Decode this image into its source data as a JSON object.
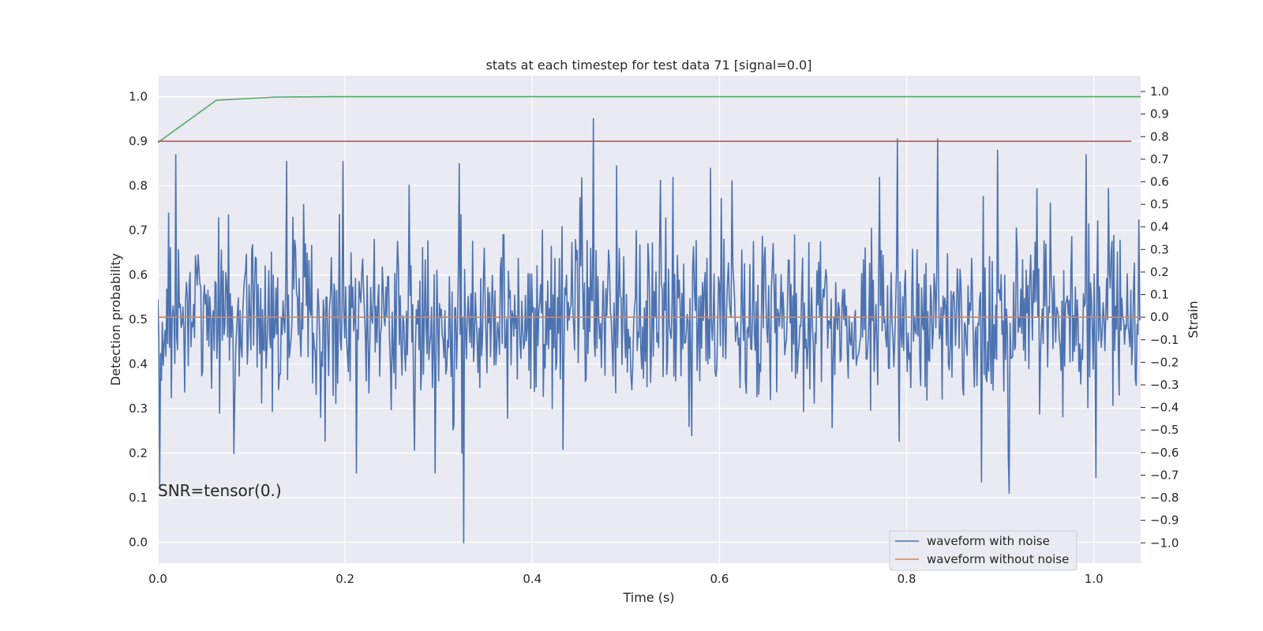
{
  "chart_data": {
    "type": "line",
    "title": "stats at each timestep for test data 71 [signal=0.0]",
    "xlabel": "Time (s)",
    "ylabel_left": "Detection probability",
    "ylabel_right": "Strain",
    "annotation": "SNR=tensor(0.)",
    "xlim": [
      0.0,
      1.05
    ],
    "ylim_left": [
      -0.047,
      1.047
    ],
    "ylim_right": [
      -1.09,
      1.07
    ],
    "x_ticks": [
      "0.0",
      "0.2",
      "0.4",
      "0.6",
      "0.8",
      "1.0"
    ],
    "x_tick_values": [
      0.0,
      0.2,
      0.4,
      0.6,
      0.8,
      1.0
    ],
    "y_left_ticks": [
      "0.0",
      "0.1",
      "0.2",
      "0.3",
      "0.4",
      "0.5",
      "0.6",
      "0.7",
      "0.8",
      "0.9",
      "1.0"
    ],
    "y_left_tick_values": [
      0.0,
      0.1,
      0.2,
      0.3,
      0.4,
      0.5,
      0.6,
      0.7,
      0.8,
      0.9,
      1.0
    ],
    "y_right_ticks": [
      "1.0",
      "0.9",
      "0.8",
      "0.7",
      "0.6",
      "0.5",
      "0.4",
      "0.3",
      "0.2",
      "0.1",
      "0.0",
      "−0.1",
      "−0.2",
      "−0.3",
      "−0.4",
      "−0.5",
      "−0.6",
      "−0.7",
      "−0.8",
      "−0.9",
      "−1.0"
    ],
    "y_right_tick_values": [
      1.0,
      0.9,
      0.8,
      0.7,
      0.6,
      0.5,
      0.4,
      0.3,
      0.2,
      0.1,
      0.0,
      -0.1,
      -0.2,
      -0.3,
      -0.4,
      -0.5,
      -0.6,
      -0.7,
      -0.8,
      -0.9,
      -1.0
    ],
    "grid": true,
    "legend_position": "lower-right",
    "series": [
      {
        "name": "waveform with noise",
        "axis": "right",
        "color": "#4c72b0",
        "noise": {
          "count": 1100,
          "seed": 71,
          "sigma": 0.2,
          "x_end": 1.05
        },
        "peaks": [
          {
            "x": 0.002,
            "y": -0.75
          },
          {
            "x": 0.019,
            "y": 0.72
          },
          {
            "x": 0.138,
            "y": 0.69
          },
          {
            "x": 0.198,
            "y": 0.69
          },
          {
            "x": 0.212,
            "y": -0.69
          },
          {
            "x": 0.296,
            "y": -0.69
          },
          {
            "x": 0.322,
            "y": 0.68
          },
          {
            "x": 0.327,
            "y": -1.0
          },
          {
            "x": 0.465,
            "y": 0.88
          },
          {
            "x": 0.49,
            "y": 0.67
          },
          {
            "x": 0.59,
            "y": 0.66
          },
          {
            "x": 0.79,
            "y": 0.79
          },
          {
            "x": 0.792,
            "y": -0.55
          },
          {
            "x": 0.833,
            "y": 0.79
          },
          {
            "x": 0.88,
            "y": -0.73
          },
          {
            "x": 0.897,
            "y": 0.74
          },
          {
            "x": 0.91,
            "y": -0.78
          },
          {
            "x": 0.992,
            "y": 0.72
          },
          {
            "x": 1.002,
            "y": -0.71
          },
          {
            "x": 1.048,
            "y": 0.43
          }
        ]
      },
      {
        "name": "waveform without noise",
        "axis": "right",
        "color": "#dd8452",
        "x": [
          0.0,
          1.05
        ],
        "y": [
          0.0,
          0.0
        ]
      },
      {
        "axis": "left",
        "color": "#55a868",
        "x": [
          0.0,
          0.0625,
          0.125,
          0.1875,
          1.05
        ],
        "y": [
          0.897,
          0.992,
          0.999,
          1.0,
          1.0
        ]
      },
      {
        "axis": "left",
        "color": "#c44e52",
        "x": [
          0.0,
          1.04
        ],
        "y": [
          0.9,
          0.9
        ]
      }
    ]
  }
}
